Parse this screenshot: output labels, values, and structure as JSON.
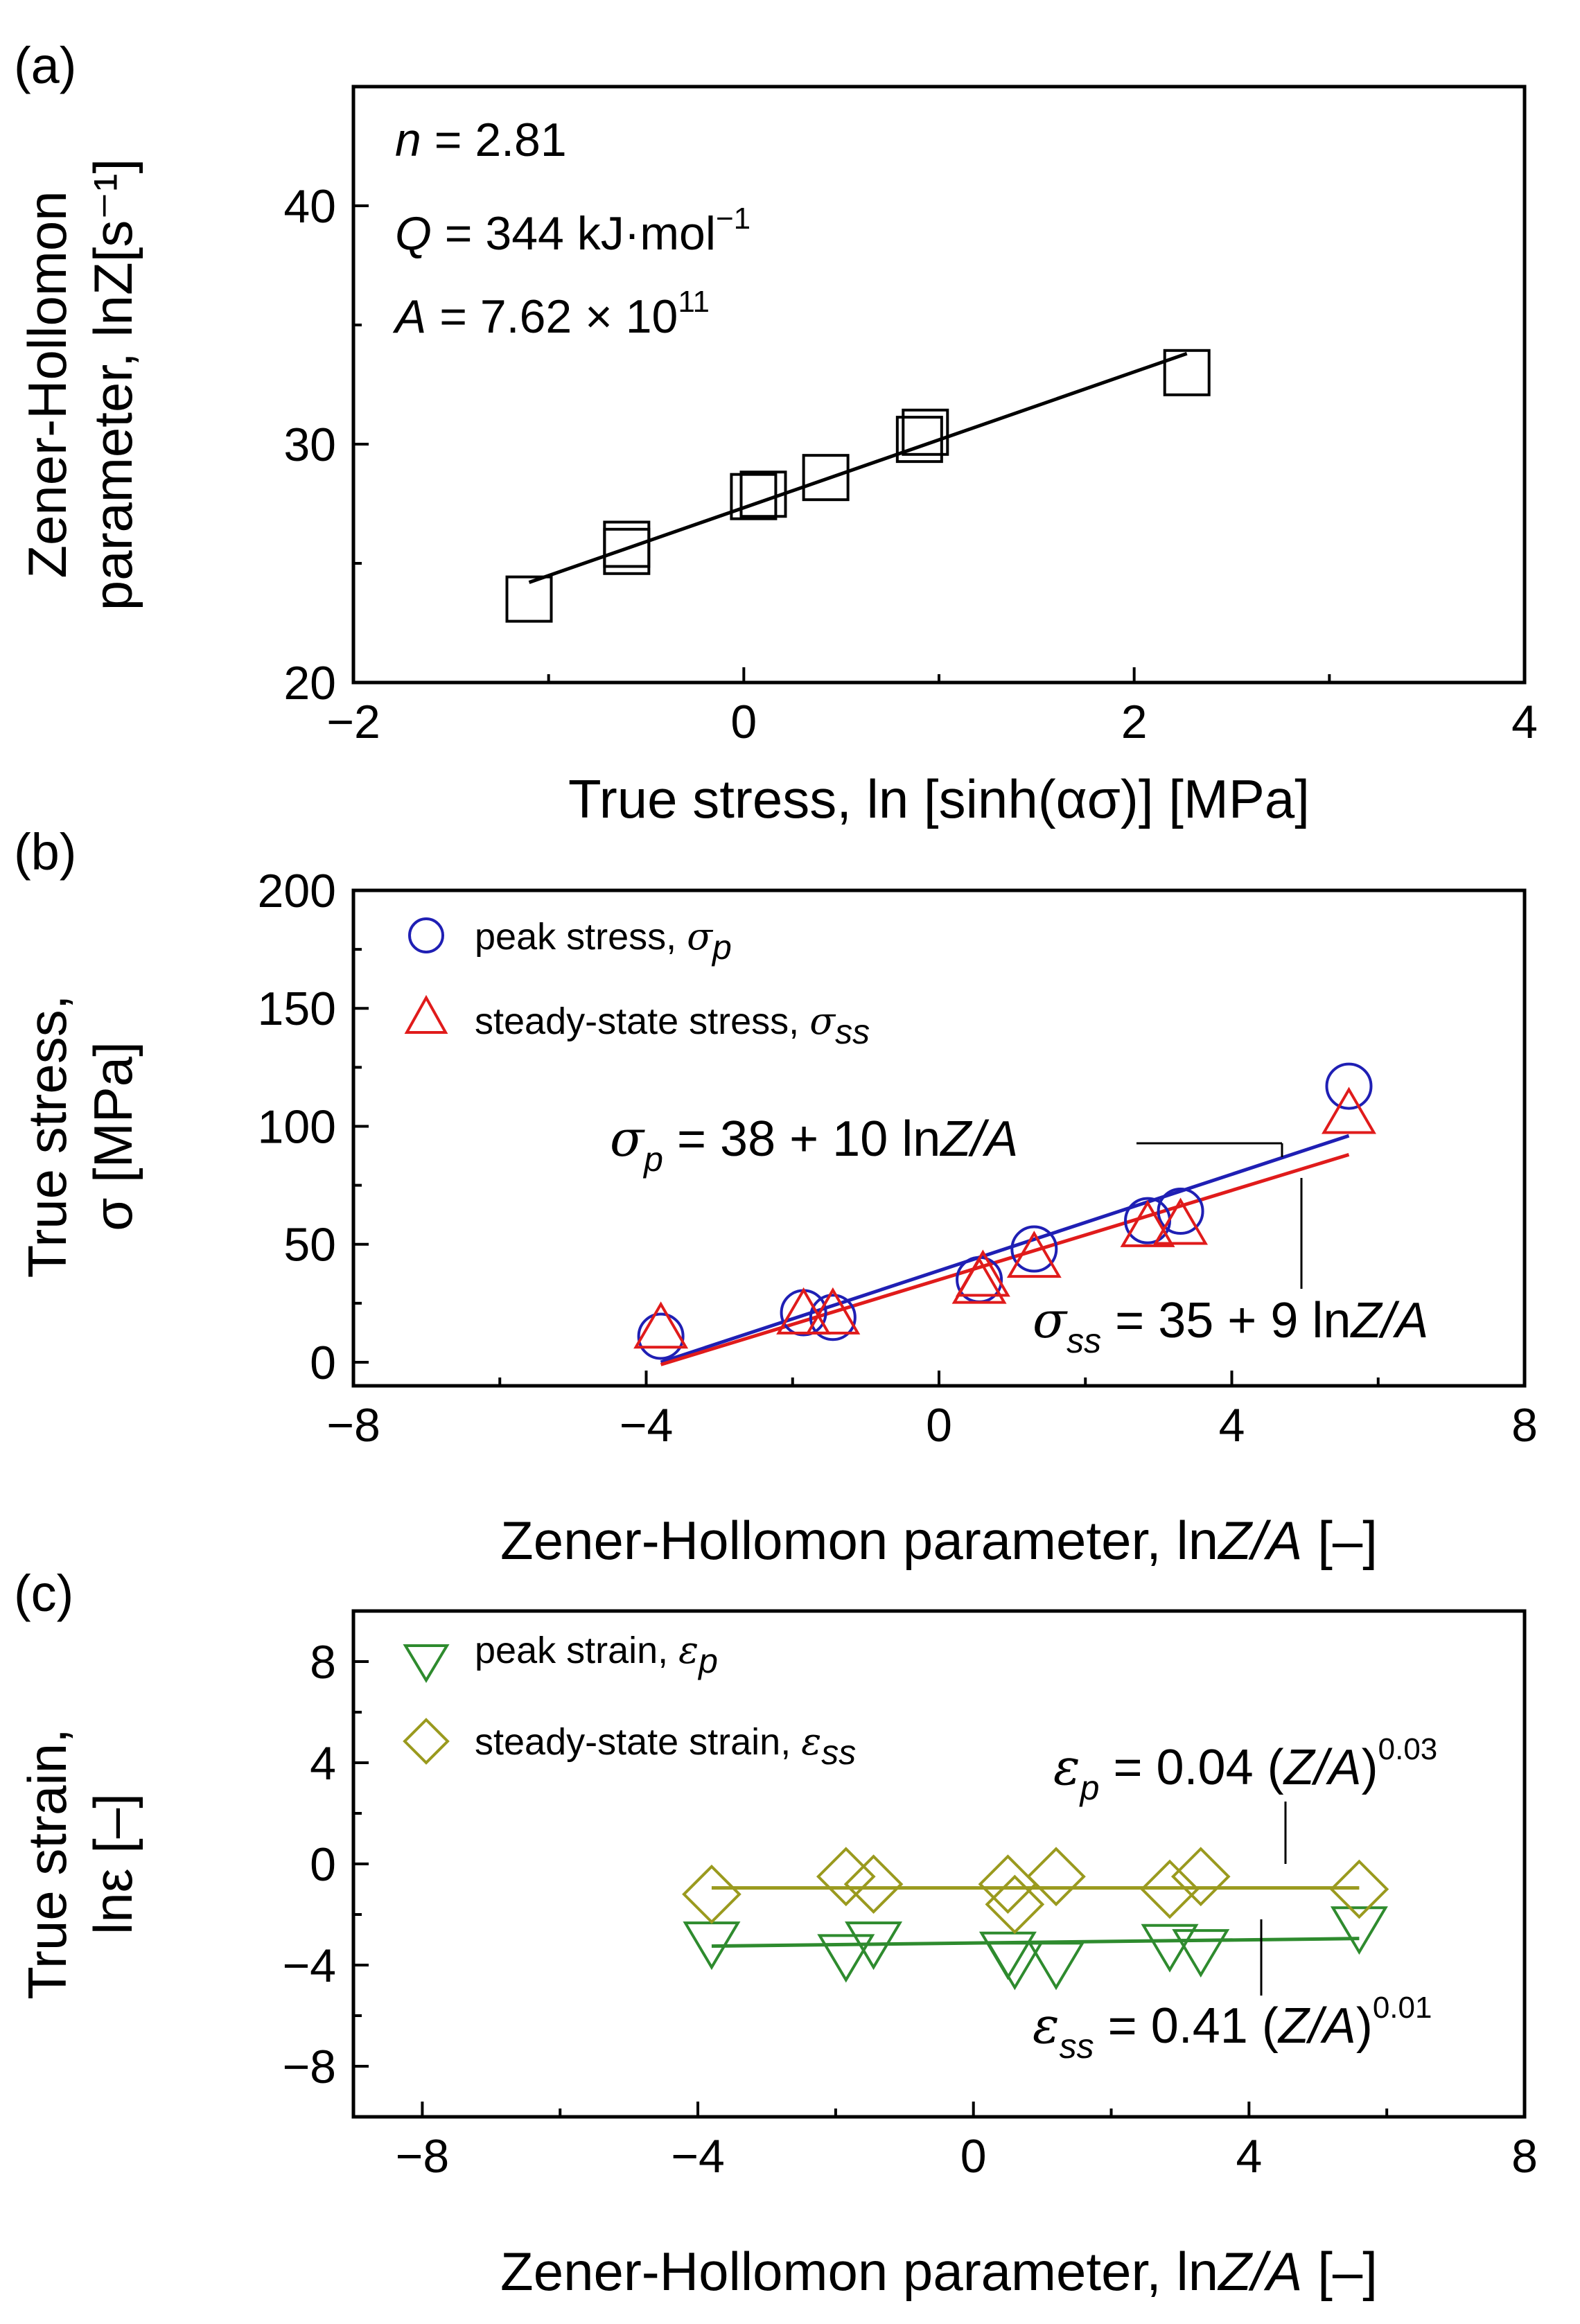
{
  "chart_data": [
    {
      "panel": "(a)",
      "type": "scatter",
      "xlabel": "True stress, ln [sinh(ασ)] [MPa]",
      "ylabel_line1": "Zener-Hollomon",
      "ylabel_line2": "parameter, lnZ[s⁻¹]",
      "xlim": [
        -2,
        4
      ],
      "ylim": [
        20,
        45
      ],
      "xticks": [
        -2,
        0,
        2,
        4
      ],
      "yticks": [
        20,
        30,
        40
      ],
      "annotations": [
        {
          "italic": "n",
          "text": " = 2.81"
        },
        {
          "italic": "Q",
          "text": " = 344 kJ·mol",
          "sup": "−1"
        },
        {
          "italic": "A",
          "text": " = 7.62 × 10",
          "sup": "11"
        }
      ],
      "series": [
        {
          "name": "data",
          "marker": "square",
          "color": "#000000",
          "points": [
            [
              -1.1,
              23.5
            ],
            [
              -0.6,
              25.5
            ],
            [
              -0.6,
              25.8
            ],
            [
              0.05,
              27.8
            ],
            [
              0.1,
              27.9
            ],
            [
              0.42,
              28.6
            ],
            [
              0.9,
              30.2
            ],
            [
              0.93,
              30.5
            ],
            [
              2.27,
              33.0
            ]
          ]
        }
      ],
      "fit_lines": [
        {
          "color": "#000000",
          "x": [
            -1.1,
            2.27
          ],
          "y": [
            24.2,
            33.8
          ]
        }
      ]
    },
    {
      "panel": "(b)",
      "type": "scatter",
      "xlabel_prefix": "Zener-Hollomon parameter, ln",
      "xlabel_italic": "Z/A",
      "xlabel_suffix": " [–]",
      "ylabel_line1": "True stress,",
      "ylabel_line2": "σ [MPa]",
      "xlim": [
        -8,
        8
      ],
      "ylim": [
        -10,
        200
      ],
      "xticks": [
        -8,
        -4,
        0,
        4,
        8
      ],
      "yticks": [
        0,
        50,
        100,
        150,
        200
      ],
      "legend": [
        {
          "label": "peak stress, ",
          "sym": "σ",
          "sub": "p",
          "marker": "circle",
          "color": "#1f1fb4"
        },
        {
          "label": "steady-state stress, ",
          "sym": "σ",
          "sub": "ss",
          "marker": "triangle-up",
          "color": "#e01b1b"
        }
      ],
      "series": [
        {
          "name": "peak stress, σp",
          "marker": "circle",
          "color": "#1f1fb4",
          "points": [
            [
              -3.8,
              11
            ],
            [
              -1.85,
              21
            ],
            [
              -1.45,
              19
            ],
            [
              0.55,
              35
            ],
            [
              1.3,
              48
            ],
            [
              2.85,
              60
            ],
            [
              3.3,
              64
            ],
            [
              5.6,
              117
            ]
          ]
        },
        {
          "name": "steady-state stress, σss",
          "marker": "triangle-up",
          "color": "#e01b1b",
          "points": [
            [
              -3.8,
              14
            ],
            [
              -1.85,
              20
            ],
            [
              -1.45,
              20
            ],
            [
              0.55,
              33
            ],
            [
              0.6,
              36
            ],
            [
              1.3,
              44
            ],
            [
              2.85,
              57
            ],
            [
              3.3,
              58
            ],
            [
              5.6,
              105
            ]
          ]
        }
      ],
      "fit_lines": [
        {
          "color": "#1f1fb4",
          "x": [
            -3.8,
            5.6
          ],
          "y": [
            0,
            96
          ]
        },
        {
          "color": "#e01b1b",
          "x": [
            -3.8,
            5.6
          ],
          "y": [
            -1,
            88
          ]
        }
      ],
      "equations": [
        {
          "sym": "σ",
          "sub": "p",
          "text_pre": " = 38 + 10 ln",
          "text_it": "Z/A",
          "text_post": ""
        },
        {
          "sym": "σ",
          "sub": "ss",
          "text_pre": " = 35 + 9 ln",
          "text_it": "Z/A",
          "text_post": ""
        }
      ]
    },
    {
      "panel": "(c)",
      "type": "scatter",
      "xlabel_prefix": "Zener-Hollomon parameter, ln",
      "xlabel_italic": "Z/A",
      "xlabel_suffix": " [–]",
      "ylabel_line1": "True strain,",
      "ylabel_line2": "lnε [–]",
      "xlim": [
        -9,
        8
      ],
      "ylim": [
        -10,
        10
      ],
      "xticks": [
        -8,
        -4,
        0,
        4,
        8
      ],
      "yticks": [
        -8,
        -4,
        0,
        4,
        8
      ],
      "legend": [
        {
          "label": "peak strain, ",
          "sym": "ε",
          "sub": "p",
          "marker": "triangle-down",
          "color": "#2e8b2e"
        },
        {
          "label": "steady-state strain, ",
          "sym": "ε",
          "sub": "ss",
          "marker": "diamond",
          "color": "#9a9a1e"
        }
      ],
      "series": [
        {
          "name": "peak strain, εp",
          "marker": "triangle-down",
          "color": "#2e8b2e",
          "points": [
            [
              -3.8,
              -3.1
            ],
            [
              -1.85,
              -3.6
            ],
            [
              -1.45,
              -3.1
            ],
            [
              0.5,
              -3.5
            ],
            [
              0.6,
              -3.9
            ],
            [
              1.2,
              -3.9
            ],
            [
              2.85,
              -3.2
            ],
            [
              3.3,
              -3.4
            ],
            [
              5.6,
              -2.5
            ]
          ]
        },
        {
          "name": "steady-state strain, εss",
          "marker": "diamond",
          "color": "#9a9a1e",
          "points": [
            [
              -3.8,
              -1.2
            ],
            [
              -1.85,
              -0.5
            ],
            [
              -1.45,
              -0.8
            ],
            [
              0.5,
              -0.8
            ],
            [
              0.6,
              -1.6
            ],
            [
              1.2,
              -0.5
            ],
            [
              2.85,
              -1.0
            ],
            [
              3.3,
              -0.5
            ],
            [
              5.6,
              -1.0
            ]
          ]
        }
      ],
      "fit_lines": [
        {
          "color": "#9a9a1e",
          "x": [
            -3.8,
            5.6
          ],
          "y": [
            -0.95,
            -0.95
          ]
        },
        {
          "color": "#2e8b2e",
          "x": [
            -3.8,
            5.6
          ],
          "y": [
            -3.25,
            -2.95
          ]
        }
      ],
      "equations": [
        {
          "sym": "ε",
          "sub": "p",
          "text_pre": " = 0.04 (",
          "text_it": "Z/A",
          "text_post": ")",
          "sup": "0.03"
        },
        {
          "sym": "ε",
          "sub": "ss",
          "text_pre": " = 0.41 (",
          "text_it": "Z/A",
          "text_post": ")",
          "sup": "0.01"
        }
      ]
    }
  ]
}
